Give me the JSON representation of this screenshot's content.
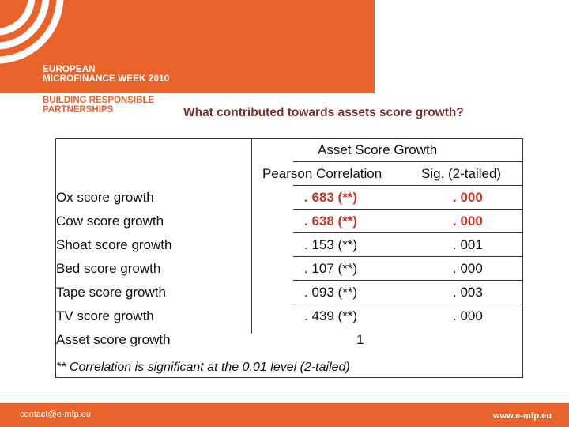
{
  "header": {
    "event_line1": "EUROPEAN",
    "event_line2": "MICROFINANCE WEEK 2010",
    "tagline_line1": "BUILDING RESPONSIBLE",
    "tagline_line2": "PARTNERSHIPS"
  },
  "slide": {
    "question": "What contributed towards assets score growth?"
  },
  "table": {
    "group_header": "Asset Score Growth",
    "col_corr": "Pearson Correlation",
    "col_sig": "Sig. (2-tailed)",
    "rows": [
      {
        "label": "Ox score growth",
        "corr": ". 683 (**)",
        "sig": ". 000"
      },
      {
        "label": "Cow score growth",
        "corr": ". 638 (**)",
        "sig": ". 000"
      },
      {
        "label": "Shoat score growth",
        "corr": ". 153 (**)",
        "sig": ". 001"
      },
      {
        "label": "Bed score growth",
        "corr": ". 107 (**)",
        "sig": ". 000"
      },
      {
        "label": "Tape score growth",
        "corr": ". 093 (**)",
        "sig": ". 003"
      },
      {
        "label": "TV score growth",
        "corr": ". 439 (**)",
        "sig": ". 000"
      },
      {
        "label": "Asset score growth",
        "corr": "1",
        "sig": ""
      }
    ],
    "footnote": "** Correlation is significant at the 0.01 level (2-tailed)"
  },
  "footer": {
    "contact": "contact@e-mfp.eu",
    "website": "www.e-mfp.eu"
  },
  "colors": {
    "brand_orange": "#e8622a",
    "highlight": "#c0392b",
    "question": "#7a2f2f"
  }
}
